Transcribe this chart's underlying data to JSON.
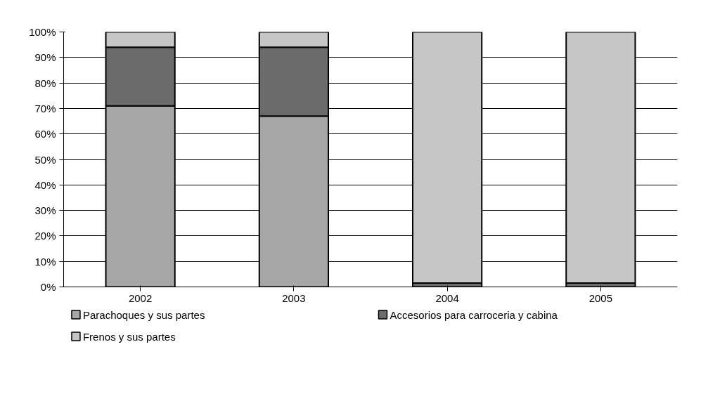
{
  "chart_data": {
    "type": "bar",
    "stacked": true,
    "categories": [
      "2002",
      "2003",
      "2004",
      "2005"
    ],
    "series": [
      {
        "name": "Parachoques y sus partes",
        "color": "#a6a6a6",
        "values": [
          71,
          67,
          0,
          0
        ]
      },
      {
        "name": "Accesorios para carroceria y cabina",
        "color": "#6b6b6b",
        "values": [
          23,
          27,
          1.5,
          1.5
        ]
      },
      {
        "name": "Frenos y sus partes",
        "color": "#c6c6c6",
        "values": [
          6,
          6,
          98.5,
          98.5
        ]
      }
    ],
    "ylim": [
      0,
      100
    ],
    "yticks": [
      {
        "value": 0,
        "label": "0%"
      },
      {
        "value": 10,
        "label": "10%"
      },
      {
        "value": 20,
        "label": "20%"
      },
      {
        "value": 30,
        "label": "30%"
      },
      {
        "value": 40,
        "label": "40%"
      },
      {
        "value": 50,
        "label": "50%"
      },
      {
        "value": 60,
        "label": "60%"
      },
      {
        "value": 70,
        "label": "70%"
      },
      {
        "value": 80,
        "label": "80%"
      },
      {
        "value": 90,
        "label": "90%"
      },
      {
        "value": 100,
        "label": "100%"
      }
    ],
    "grid": "y",
    "legend": "bottom"
  }
}
